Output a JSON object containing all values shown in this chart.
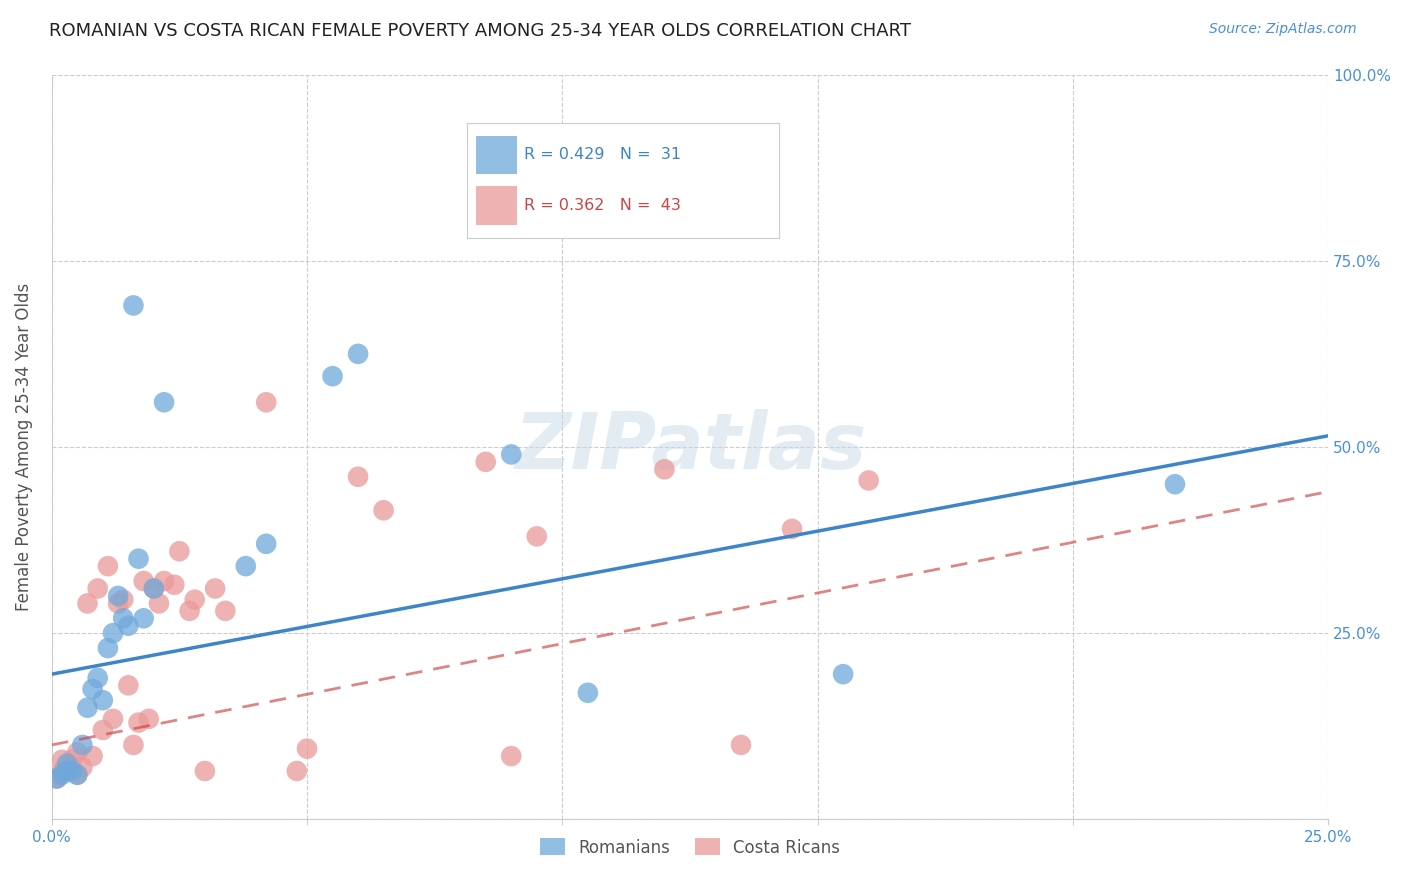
{
  "title": "ROMANIAN VS COSTA RICAN FEMALE POVERTY AMONG 25-34 YEAR OLDS CORRELATION CHART",
  "source": "Source: ZipAtlas.com",
  "ylabel": "Female Poverty Among 25-34 Year Olds",
  "xlim": [
    0.0,
    0.25
  ],
  "ylim": [
    0.0,
    1.0
  ],
  "xticks": [
    0.0,
    0.05,
    0.1,
    0.15,
    0.2,
    0.25
  ],
  "xticklabels": [
    "0.0%",
    "",
    "",
    "",
    "",
    "25.0%"
  ],
  "yticks": [
    0.0,
    0.25,
    0.5,
    0.75,
    1.0
  ],
  "yticklabels": [
    "",
    "25.0%",
    "50.0%",
    "75.0%",
    "100.0%"
  ],
  "romanian_color": "#6fa8dc",
  "costa_rican_color": "#ea9999",
  "trend_romanian_color": "#3d85c8",
  "trend_costa_rican_color": "#cc4444",
  "watermark": "ZIPatlas",
  "trend_romanian_intercept": 0.195,
  "trend_romanian_slope": 1.28,
  "trend_cr_intercept": 0.1,
  "trend_cr_slope": 1.36,
  "romanians_x": [
    0.001,
    0.002,
    0.003,
    0.003,
    0.004,
    0.005,
    0.006,
    0.007,
    0.008,
    0.009,
    0.01,
    0.011,
    0.012,
    0.013,
    0.014,
    0.015,
    0.016,
    0.017,
    0.018,
    0.02,
    0.022,
    0.038,
    0.042,
    0.055,
    0.06,
    0.09,
    0.105,
    0.155,
    0.22
  ],
  "romanians_y": [
    0.055,
    0.06,
    0.065,
    0.075,
    0.065,
    0.06,
    0.1,
    0.15,
    0.175,
    0.19,
    0.16,
    0.23,
    0.25,
    0.3,
    0.27,
    0.26,
    0.69,
    0.35,
    0.27,
    0.31,
    0.56,
    0.34,
    0.37,
    0.595,
    0.625,
    0.49,
    0.17,
    0.195,
    0.45
  ],
  "costa_ricans_x": [
    0.001,
    0.002,
    0.002,
    0.003,
    0.004,
    0.005,
    0.005,
    0.006,
    0.007,
    0.008,
    0.009,
    0.01,
    0.011,
    0.012,
    0.013,
    0.014,
    0.015,
    0.016,
    0.017,
    0.018,
    0.019,
    0.02,
    0.021,
    0.022,
    0.024,
    0.025,
    0.027,
    0.028,
    0.03,
    0.032,
    0.034,
    0.042,
    0.048,
    0.05,
    0.06,
    0.065,
    0.085,
    0.09,
    0.095,
    0.12,
    0.135,
    0.145,
    0.16
  ],
  "costa_ricans_y": [
    0.055,
    0.065,
    0.08,
    0.07,
    0.08,
    0.06,
    0.09,
    0.07,
    0.29,
    0.085,
    0.31,
    0.12,
    0.34,
    0.135,
    0.29,
    0.295,
    0.18,
    0.1,
    0.13,
    0.32,
    0.135,
    0.31,
    0.29,
    0.32,
    0.315,
    0.36,
    0.28,
    0.295,
    0.065,
    0.31,
    0.28,
    0.56,
    0.065,
    0.095,
    0.46,
    0.415,
    0.48,
    0.085,
    0.38,
    0.47,
    0.1,
    0.39,
    0.455
  ]
}
